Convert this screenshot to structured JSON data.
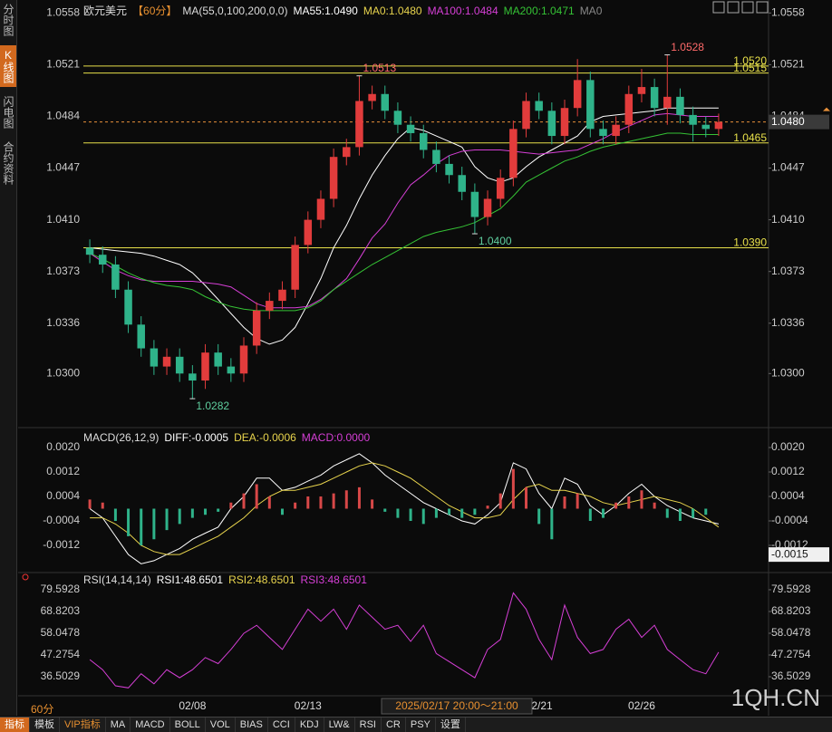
{
  "sidebar": [
    "分时图",
    "K线图",
    "闪电图",
    "合约资料"
  ],
  "period_tab": "60分",
  "toolbar": [
    "指标",
    "模板",
    "VIP指标",
    "MA",
    "MACD",
    "BOLL",
    "VOL",
    "BIAS",
    "CCI",
    "KDJ",
    "LW&",
    "RSI",
    "CR",
    "PSY",
    "设置"
  ],
  "watermark": "1QH.CN",
  "chart_data": [
    {
      "type": "candlestick",
      "title": "欧元美元",
      "period": "【60分】",
      "indicator": "MA(55,0,100,200,0,0)",
      "up_color": "#e23c3c",
      "down_color": "#2fb38a",
      "candles": {
        "open": [
          1.039,
          1.0385,
          1.0378,
          1.036,
          1.0335,
          1.0318,
          1.0305,
          1.0312,
          1.03,
          1.0295,
          1.0315,
          1.0305,
          1.03,
          1.032,
          1.0345,
          1.0352,
          1.036,
          1.0392,
          1.041,
          1.0425,
          1.0455,
          1.0462,
          1.0495,
          1.05,
          1.0488,
          1.0478,
          1.0472,
          1.046,
          1.045,
          1.0442,
          1.043,
          1.0412,
          1.0425,
          1.044,
          1.0475,
          1.0495,
          1.0488,
          1.047,
          1.049,
          1.051,
          1.0475,
          1.047,
          1.0478,
          1.05,
          1.0505,
          1.049,
          1.0498,
          1.0485,
          1.0478,
          1.0475
        ],
        "high": [
          1.0396,
          1.0391,
          1.0384,
          1.0366,
          1.0341,
          1.0324,
          1.0318,
          1.0318,
          1.0306,
          1.0321,
          1.0321,
          1.0311,
          1.0326,
          1.0351,
          1.0358,
          1.0366,
          1.0398,
          1.0416,
          1.0431,
          1.0461,
          1.0468,
          1.0513,
          1.0506,
          1.0506,
          1.0494,
          1.0484,
          1.0478,
          1.0466,
          1.0456,
          1.0448,
          1.0436,
          1.0431,
          1.0446,
          1.0481,
          1.0501,
          1.0501,
          1.0494,
          1.0496,
          1.0525,
          1.0516,
          1.0481,
          1.0484,
          1.0506,
          1.0518,
          1.0511,
          1.0528,
          1.0504,
          1.0491,
          1.0484,
          1.0486
        ],
        "low": [
          1.0379,
          1.0372,
          1.0354,
          1.0329,
          1.0312,
          1.0299,
          1.0299,
          1.0294,
          1.0282,
          1.0289,
          1.0299,
          1.0294,
          1.0294,
          1.0314,
          1.0339,
          1.0346,
          1.0354,
          1.0386,
          1.0404,
          1.0419,
          1.0449,
          1.0456,
          1.0489,
          1.0482,
          1.0472,
          1.0466,
          1.0454,
          1.0444,
          1.0436,
          1.0424,
          1.04,
          1.0406,
          1.0419,
          1.0434,
          1.0469,
          1.0482,
          1.0464,
          1.0464,
          1.0484,
          1.0469,
          1.0464,
          1.0464,
          1.0472,
          1.0494,
          1.0484,
          1.0478,
          1.0479,
          1.0466,
          1.0469,
          1.047
        ],
        "close": [
          1.0385,
          1.0378,
          1.036,
          1.0335,
          1.0318,
          1.0305,
          1.0312,
          1.03,
          1.0295,
          1.0315,
          1.0305,
          1.03,
          1.032,
          1.0345,
          1.0352,
          1.036,
          1.0392,
          1.041,
          1.0425,
          1.0455,
          1.0462,
          1.0495,
          1.05,
          1.0488,
          1.0478,
          1.0472,
          1.046,
          1.045,
          1.0442,
          1.043,
          1.0412,
          1.0425,
          1.044,
          1.0475,
          1.0495,
          1.0488,
          1.047,
          1.049,
          1.051,
          1.0475,
          1.047,
          1.0478,
          1.05,
          1.0505,
          1.049,
          1.0498,
          1.0485,
          1.0478,
          1.0475,
          1.048
        ]
      },
      "series": [
        {
          "name": "MA55:1.0490",
          "color": "#ffffff",
          "values": [
            1.039,
            1.0389,
            1.0388,
            1.0387,
            1.0386,
            1.0384,
            1.0381,
            1.0378,
            1.0372,
            1.0363,
            1.0353,
            1.0343,
            1.0333,
            1.0325,
            1.0321,
            1.0324,
            1.0333,
            1.035,
            1.0368,
            1.039,
            1.0406,
            1.0425,
            1.0442,
            1.0456,
            1.0468,
            1.0476,
            1.0474,
            1.047,
            1.0466,
            1.0462,
            1.0448,
            1.044,
            1.0437,
            1.044,
            1.0448,
            1.0455,
            1.046,
            1.0465,
            1.047,
            1.048,
            1.0484,
            1.0485,
            1.0486,
            1.0487,
            1.0488,
            1.049,
            1.049,
            1.049,
            1.049,
            1.049
          ]
        },
        {
          "name": "MA0:1.0480",
          "color": "#e8d44d"
        },
        {
          "name": "MA100:1.0484",
          "color": "#d63fd6",
          "values": [
            1.0386,
            1.038,
            1.0374,
            1.037,
            1.0367,
            1.0366,
            1.0366,
            1.0366,
            1.0366,
            1.0365,
            1.0364,
            1.0362,
            1.0356,
            1.035,
            1.0347,
            1.0347,
            1.0347,
            1.0348,
            1.0353,
            1.036,
            1.0368,
            1.0382,
            1.0397,
            1.0407,
            1.0422,
            1.0435,
            1.0442,
            1.045,
            1.0456,
            1.0459,
            1.046,
            1.046,
            1.046,
            1.0459,
            1.0458,
            1.0457,
            1.0458,
            1.0459,
            1.046,
            1.0464,
            1.0468,
            1.0473,
            1.0477,
            1.0481,
            1.0485,
            1.0486,
            1.0485,
            1.0484,
            1.0484,
            1.0484
          ]
        },
        {
          "name": "MA200:1.0471",
          "color": "#35c335",
          "values": [
            1.0386,
            1.0382,
            1.0377,
            1.0372,
            1.0368,
            1.0365,
            1.0363,
            1.0362,
            1.036,
            1.0355,
            1.0351,
            1.0348,
            1.0346,
            1.0345,
            1.0345,
            1.0345,
            1.0345,
            1.0347,
            1.0352,
            1.036,
            1.0366,
            1.0372,
            1.0378,
            1.0383,
            1.0388,
            1.0393,
            1.0398,
            1.0401,
            1.0403,
            1.0405,
            1.0408,
            1.0413,
            1.0418,
            1.0427,
            1.0437,
            1.0442,
            1.0447,
            1.0452,
            1.0455,
            1.0459,
            1.0462,
            1.0464,
            1.0466,
            1.0468,
            1.047,
            1.0472,
            1.0472,
            1.0471,
            1.0471,
            1.0471
          ]
        },
        {
          "name": "MA0",
          "color": "#888888"
        }
      ],
      "ylim": [
        1.0265,
        1.0565
      ],
      "yticks": [
        1.0558,
        1.0521,
        1.0484,
        1.0447,
        {
          "value": 1.041,
          "label": "1.0410"
        },
        1.0373,
        1.0336,
        {
          "value": 1.03,
          "label": "1.0300"
        }
      ],
      "levels": [
        {
          "value": 1.052,
          "label": "1.0520"
        },
        {
          "value": 1.0515,
          "label": "1.0515"
        },
        {
          "value": 1.0465,
          "label": "1.0465"
        },
        {
          "value": 1.039,
          "label": "1.0390"
        }
      ],
      "level_color": "#e8e04a",
      "annotations": [
        {
          "value": 1.0513,
          "label": "1.0513"
        },
        {
          "value": 1.0528,
          "label": "1.0528"
        },
        {
          "value": 1.04,
          "label": "1.0400"
        },
        {
          "value": 1.0282,
          "label": "1.0282"
        }
      ],
      "last_price": {
        "value": 1.048,
        "label": "1.0480"
      }
    },
    {
      "type": "macd",
      "title": "MACD(26,12,9)",
      "up_color": "#d84848",
      "down_color": "#2fb38a",
      "series": [
        {
          "name": "DIFF:-0.0005",
          "color": "#ffffff",
          "values": [
            0,
            -0.0003,
            -0.0009,
            -0.0015,
            -0.0018,
            -0.0017,
            -0.0015,
            -0.0013,
            -0.001,
            -0.0008,
            -0.0006,
            0,
            0.0004,
            0.001,
            0.001,
            0.0006,
            0.0007,
            0.0009,
            0.0011,
            0.0014,
            0.0016,
            0.0018,
            0.0015,
            0.0011,
            0.0008,
            0.0005,
            0.0002,
            0,
            -0.0002,
            -0.0004,
            -0.0005,
            -0.0002,
            0.0002,
            0.0015,
            0.0013,
            0.0005,
            0,
            0.001,
            0.0008,
            0.0001,
            -0.0002,
            0.0001,
            0.0005,
            0.0008,
            0.0004,
            0.0001,
            -0.0001,
            -0.0003,
            -0.0004,
            -0.0005
          ]
        },
        {
          "name": "DEA:-0.0006",
          "color": "#e8d44d",
          "values": [
            -0.0003,
            -0.0003,
            -0.0005,
            -0.0008,
            -0.0012,
            -0.0014,
            -0.0015,
            -0.0015,
            -0.0013,
            -0.0011,
            -0.0009,
            -0.0006,
            -0.0003,
            0.0001,
            0.0004,
            0.0006,
            0.0006,
            0.0007,
            0.0008,
            0.001,
            0.0012,
            0.0014,
            0.0015,
            0.0014,
            0.0012,
            0.001,
            0.0007,
            0.0004,
            0.0001,
            -0.0001,
            -0.0003,
            -0.0003,
            -0.0002,
            0.0003,
            0.0007,
            0.0008,
            0.0006,
            0.0006,
            0.0005,
            0.0004,
            0.0002,
            0.0001,
            0.0002,
            0.0003,
            0.0004,
            0.0003,
            0.0002,
            0,
            -0.0003,
            -0.0006
          ]
        },
        {
          "name": "MACD:0.0000",
          "color": "#d63fd6",
          "style": "bars",
          "values": [
            0.0003,
            0.0002,
            -0.0004,
            -0.0009,
            -0.0012,
            -0.001,
            -0.0007,
            -0.0005,
            -0.0003,
            -0.0002,
            -0.0001,
            0.0002,
            0.0005,
            0.0008,
            0.0004,
            -0.0002,
            0.0002,
            0.0004,
            0.0004,
            0.0005,
            0.0006,
            0.0007,
            0.0003,
            -0.0001,
            -0.0003,
            -0.0004,
            -0.0005,
            -0.0003,
            -0.0002,
            -0.0003,
            -0.0002,
            0.0001,
            0.0005,
            0.0013,
            0.0007,
            -0.0005,
            -0.001,
            0.0004,
            0.0005,
            -0.0004,
            -0.0003,
            0.0002,
            0.0004,
            0.0006,
            0.0002,
            -0.0003,
            -0.0004,
            -0.0003,
            -0.0002,
            0
          ]
        }
      ],
      "ylim": [
        -0.002,
        0.0024
      ],
      "yticks": [
        {
          "value": 0.002,
          "label": "0.0020"
        },
        {
          "value": 0.0012,
          "label": "0.0012"
        },
        {
          "value": 0.0004,
          "label": "0.0004"
        },
        {
          "value": -0.0004,
          "label": "-0.0004"
        },
        {
          "value": -0.0012,
          "label": "-0.0012"
        }
      ],
      "last_value": {
        "value": -0.0015,
        "label": "-0.0015"
      }
    },
    {
      "type": "line",
      "title": "RSI(14,14,14)",
      "series": [
        {
          "name": "RSI1:48.6501",
          "color": "#ffffff"
        },
        {
          "name": "RSI2:48.6501",
          "color": "#e8d44d"
        },
        {
          "name": "RSI3:48.6501",
          "color": "#d63fd6",
          "values": [
            45,
            40,
            32,
            31,
            38,
            33,
            40,
            36,
            40,
            46,
            43,
            50,
            58,
            62,
            56,
            50,
            60,
            70,
            64,
            70,
            60,
            72,
            66,
            60,
            62,
            54,
            62,
            48,
            44,
            40,
            36,
            50,
            55,
            78,
            70,
            55,
            45,
            72,
            56,
            48,
            50,
            60,
            65,
            56,
            62,
            50,
            45,
            40,
            38,
            48.6501
          ]
        }
      ],
      "ylim": [
        30,
        86
      ],
      "yticks": [
        79.5928,
        68.8203,
        58.0478,
        47.2754,
        36.5029
      ],
      "categories": [
        null,
        null,
        null,
        null,
        null,
        null,
        null,
        null,
        "02/08",
        null,
        null,
        null,
        null,
        null,
        null,
        null,
        null,
        "02/13",
        null,
        null,
        null,
        null,
        null,
        null,
        null,
        null,
        null,
        null,
        null,
        null,
        null,
        null,
        null,
        null,
        null,
        "02/21",
        null,
        null,
        null,
        null,
        null,
        null,
        null,
        "02/26",
        null,
        null,
        null,
        null,
        null,
        null
      ],
      "crosshair_label": "2025/02/17 20:00～21:00"
    }
  ]
}
